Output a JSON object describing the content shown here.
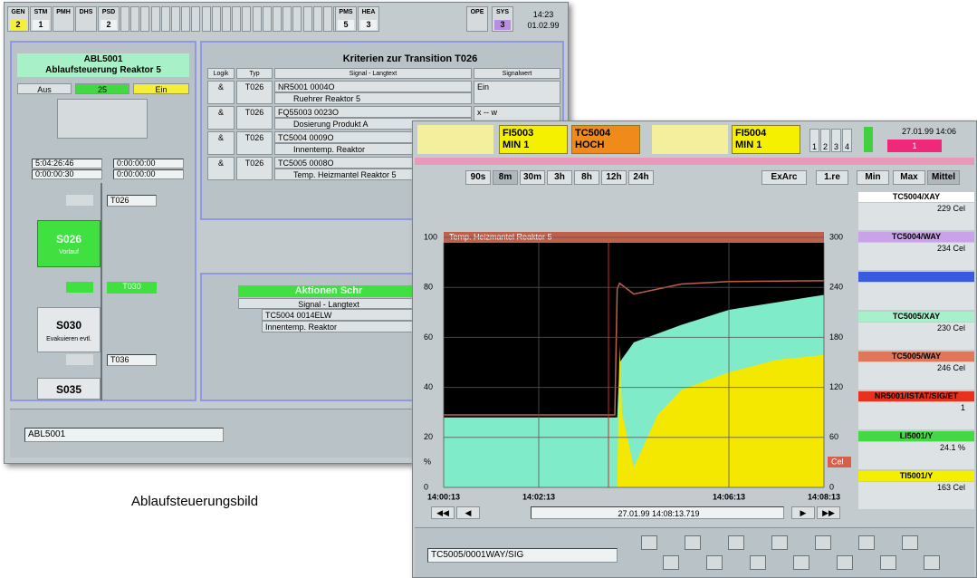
{
  "caption": "Ablaufsteuerungsbild",
  "back_window": {
    "status_bar": [
      {
        "label": "GEN",
        "value": "2",
        "color": "#f5ef3a"
      },
      {
        "label": "STM",
        "value": "1"
      },
      {
        "label": "PMH"
      },
      {
        "label": "DHS"
      },
      {
        "label": "PSD",
        "value": "2"
      },
      {
        "label": "PMS",
        "value": "5"
      },
      {
        "label": "HEA",
        "value": "3"
      },
      {
        "label": "OPE"
      },
      {
        "label": "SYS",
        "value": "3",
        "color": "#b88ee0"
      }
    ],
    "clock": {
      "time": "14:23",
      "date": "01.02.99"
    },
    "sequence": {
      "id": "ABL5001",
      "title": "Ablaufsteuerung Reaktor 5",
      "mode_off": "Aus",
      "step_count": "25",
      "mode_on": "Ein",
      "timers": [
        "5:04:26:46",
        "0:00:00:00",
        "0:00:00:30",
        "0:00:00:00"
      ],
      "transition_1": "T026",
      "step_1": {
        "id": "S026",
        "text": "Vorlauf"
      },
      "transition_2": "T030",
      "step_2": {
        "id": "S030",
        "text": "Evakuieren evtl."
      },
      "transition_3": "T036",
      "step_3": "S035"
    },
    "criteria": {
      "title": "Kriterien zur Transition T026",
      "headers": [
        "Logik",
        "Typ",
        "Signal - Langtext",
        "Signalwert"
      ],
      "rows": [
        {
          "logic": "&",
          "type": "T026",
          "signal": "NR5001 0004O",
          "text": "Ruehrer Reaktor 5",
          "value": "Ein"
        },
        {
          "logic": "&",
          "type": "T026",
          "signal": "FQ55003 0023O",
          "text": "Dosierung Produkt A",
          "value": "x -- w"
        },
        {
          "logic": "&",
          "type": "T026",
          "signal": "TC5004 0009O",
          "text": "Innentemp. Reaktor"
        },
        {
          "logic": "&",
          "type": "T026",
          "signal": "TC5005 0008O",
          "text": "Temp. Heizmantel Reaktor 5"
        }
      ]
    },
    "actions": {
      "title": "Aktionen Schr",
      "header": "Signal - Langtext",
      "signal": "TC5004 0014ELW",
      "text": "Innentemp. Reaktor"
    },
    "command": "ABL5001"
  },
  "front_window": {
    "alarms": [
      {
        "tag": "FI5003",
        "text": "MIN 1",
        "color": "#f5f000"
      },
      {
        "tag": "TC5004",
        "text": "HOCH",
        "color": "#f08a1a"
      },
      {
        "tag": "FI5004",
        "text": "MIN 1",
        "color": "#f5f000"
      }
    ],
    "groups": [
      "1",
      "2",
      "3",
      "4"
    ],
    "clock": "27.01.99 14:06",
    "counter": "1",
    "ranges": [
      "90s",
      "8m",
      "30m",
      "3h",
      "8h",
      "12h",
      "24h",
      "ExArc",
      "1.re",
      "Min",
      "Max",
      "Mittel"
    ],
    "tags": [
      {
        "tag": "TC5004/XAY",
        "value": "229 Cel",
        "color": "#ffffff"
      },
      {
        "tag": "TC5004/WAY",
        "value": "234 Cel",
        "color": "#c9a2ea"
      },
      {
        "color": "#3a5ae0"
      },
      {
        "tag": "TC5005/XAY",
        "value": "230 Cel",
        "color": "#a8f0cc"
      },
      {
        "tag": "TC5005/WAY",
        "value": "246 Cel",
        "color": "#e0765a"
      },
      {
        "tag": "NR5001/ISTAT/SIG/ET",
        "value": "1",
        "color": "#e8321e"
      },
      {
        "tag": "LI5001/Y",
        "value": "24.1 %",
        "color": "#44d844"
      },
      {
        "tag": "TI5001/Y",
        "value": "163 Cel",
        "color": "#f2f000"
      }
    ],
    "timestamp": "27.01.99 14:08:13.719",
    "command": "TC5005/0001WAY/SIG"
  },
  "trend": {
    "type": "area",
    "title": "Temp. Heizmantel Reaktor 5",
    "y_unit": "%",
    "y2_unit": "Cel",
    "xlim": [
      0,
      8
    ],
    "xticks": [
      {
        "value": 0,
        "label": "14:00:13"
      },
      {
        "value": 2,
        "label": "14:02:13"
      },
      {
        "value": 6,
        "label": "14:06:13"
      },
      {
        "value": 8,
        "label": "14:08:13"
      }
    ],
    "ylim": [
      0,
      100
    ],
    "yticks": [
      0,
      20,
      40,
      60,
      80,
      100
    ],
    "y2lim": [
      0,
      300
    ],
    "y2ticks": [
      0,
      60,
      120,
      180,
      240,
      300
    ],
    "grid": true,
    "series": [
      {
        "type": "area",
        "color": "#80ebc8",
        "x": [
          0,
          1,
          2,
          3,
          3.65,
          3.7,
          4,
          5,
          6,
          7,
          8
        ],
        "values": [
          28,
          28,
          28,
          28,
          28,
          50,
          58,
          65,
          71,
          74,
          77
        ]
      },
      {
        "type": "area",
        "color": "#f5e800",
        "x": [
          3.65,
          3.7,
          3.75,
          4,
          4.5,
          5,
          6,
          7,
          8
        ],
        "values": [
          0,
          57,
          30,
          8,
          29,
          39,
          46,
          51,
          53
        ]
      },
      {
        "type": "line",
        "axis": "y2",
        "color": "#c0604a",
        "x": [
          0,
          3.6,
          3.65,
          3.7,
          4,
          5,
          6,
          8
        ],
        "values": [
          87,
          87,
          238,
          245,
          232,
          244,
          247,
          248
        ]
      }
    ]
  }
}
